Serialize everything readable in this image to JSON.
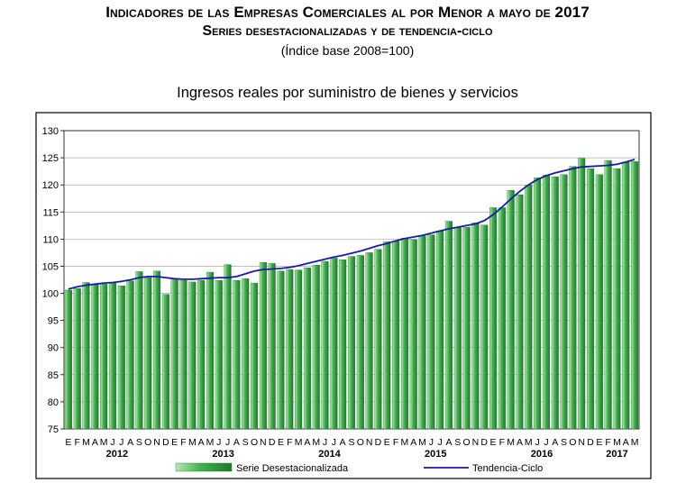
{
  "header": {
    "title": "Indicadores de las Empresas Comerciales al por Menor a mayo de 2017",
    "subtitle": "Series desestacionalizadas y de tendencia-ciclo",
    "base_note": "(Índice base 2008=100)"
  },
  "colors": {
    "bar": "#3fb24c",
    "bar_light": "#b9e6b2",
    "bar_edge": "#1e7a2b",
    "trend": "#1a1aa8",
    "plot_bg": "#ffffff",
    "frame": "#000000"
  },
  "chart_data": {
    "type": "bar",
    "title": "Ingresos reales por suministro de bienes y servicios",
    "xlabel": "",
    "ylabel": "",
    "ylim": [
      75,
      130
    ],
    "yticks": [
      75,
      80,
      85,
      90,
      95,
      100,
      105,
      110,
      115,
      120,
      125,
      130
    ],
    "grid": true,
    "legend_position": "bottom",
    "month_labels": [
      "E",
      "F",
      "M",
      "A",
      "M",
      "J",
      "J",
      "A",
      "S",
      "O",
      "N",
      "D",
      "E",
      "F",
      "M",
      "A",
      "M",
      "J",
      "J",
      "A",
      "S",
      "O",
      "N",
      "D",
      "E",
      "F",
      "M",
      "A",
      "M",
      "J",
      "J",
      "A",
      "S",
      "O",
      "N",
      "D",
      "E",
      "F",
      "M",
      "A",
      "M",
      "J",
      "J",
      "A",
      "S",
      "O",
      "N",
      "D",
      "E",
      "F",
      "M",
      "A",
      "M",
      "J",
      "J",
      "A",
      "S",
      "O",
      "N",
      "D",
      "E",
      "F",
      "M",
      "A",
      "M"
    ],
    "years": [
      {
        "label": "2012",
        "center_index": 5.5
      },
      {
        "label": "2013",
        "center_index": 17.5
      },
      {
        "label": "2014",
        "center_index": 29.5
      },
      {
        "label": "2015",
        "center_index": 41.5
      },
      {
        "label": "2016",
        "center_index": 53.5
      },
      {
        "label": "2017",
        "center_index": 62
      }
    ],
    "series": [
      {
        "name": "Serie Desestacionalizada",
        "kind": "bar",
        "values": [
          100.6,
          100.9,
          102.0,
          101.7,
          101.7,
          101.9,
          101.4,
          102.3,
          104.0,
          102.9,
          104.1,
          99.8,
          102.5,
          102.4,
          102.1,
          102.4,
          103.9,
          102.4,
          105.3,
          102.4,
          102.7,
          101.9,
          105.7,
          105.5,
          104.1,
          104.4,
          104.3,
          104.7,
          105.2,
          105.9,
          106.5,
          106.2,
          106.8,
          107.0,
          107.5,
          108.1,
          109.5,
          109.6,
          110.2,
          109.9,
          110.6,
          110.8,
          111.5,
          113.3,
          112.1,
          112.2,
          113.0,
          112.6,
          115.8,
          115.8,
          119.0,
          118.2,
          120.0,
          121.3,
          121.8,
          121.5,
          121.9,
          123.4,
          124.9,
          123.0,
          121.9,
          124.5,
          123.0,
          124.2,
          124.3
        ]
      },
      {
        "name": "Tendencia-Ciclo",
        "kind": "line",
        "values": [
          100.8,
          101.2,
          101.5,
          101.7,
          101.9,
          102.0,
          102.2,
          102.5,
          102.9,
          103.1,
          103.1,
          102.9,
          102.7,
          102.6,
          102.6,
          102.7,
          102.8,
          102.9,
          102.9,
          103.1,
          103.6,
          104.1,
          104.4,
          104.5,
          104.6,
          104.8,
          105.1,
          105.5,
          105.9,
          106.3,
          106.7,
          107.0,
          107.4,
          107.8,
          108.3,
          108.8,
          109.2,
          109.7,
          110.1,
          110.4,
          110.7,
          111.1,
          111.5,
          111.9,
          112.2,
          112.5,
          112.8,
          113.4,
          114.5,
          115.9,
          117.4,
          118.8,
          120.0,
          121.0,
          121.7,
          122.2,
          122.6,
          123.0,
          123.3,
          123.4,
          123.5,
          123.6,
          123.8,
          124.2,
          124.7
        ]
      }
    ]
  }
}
